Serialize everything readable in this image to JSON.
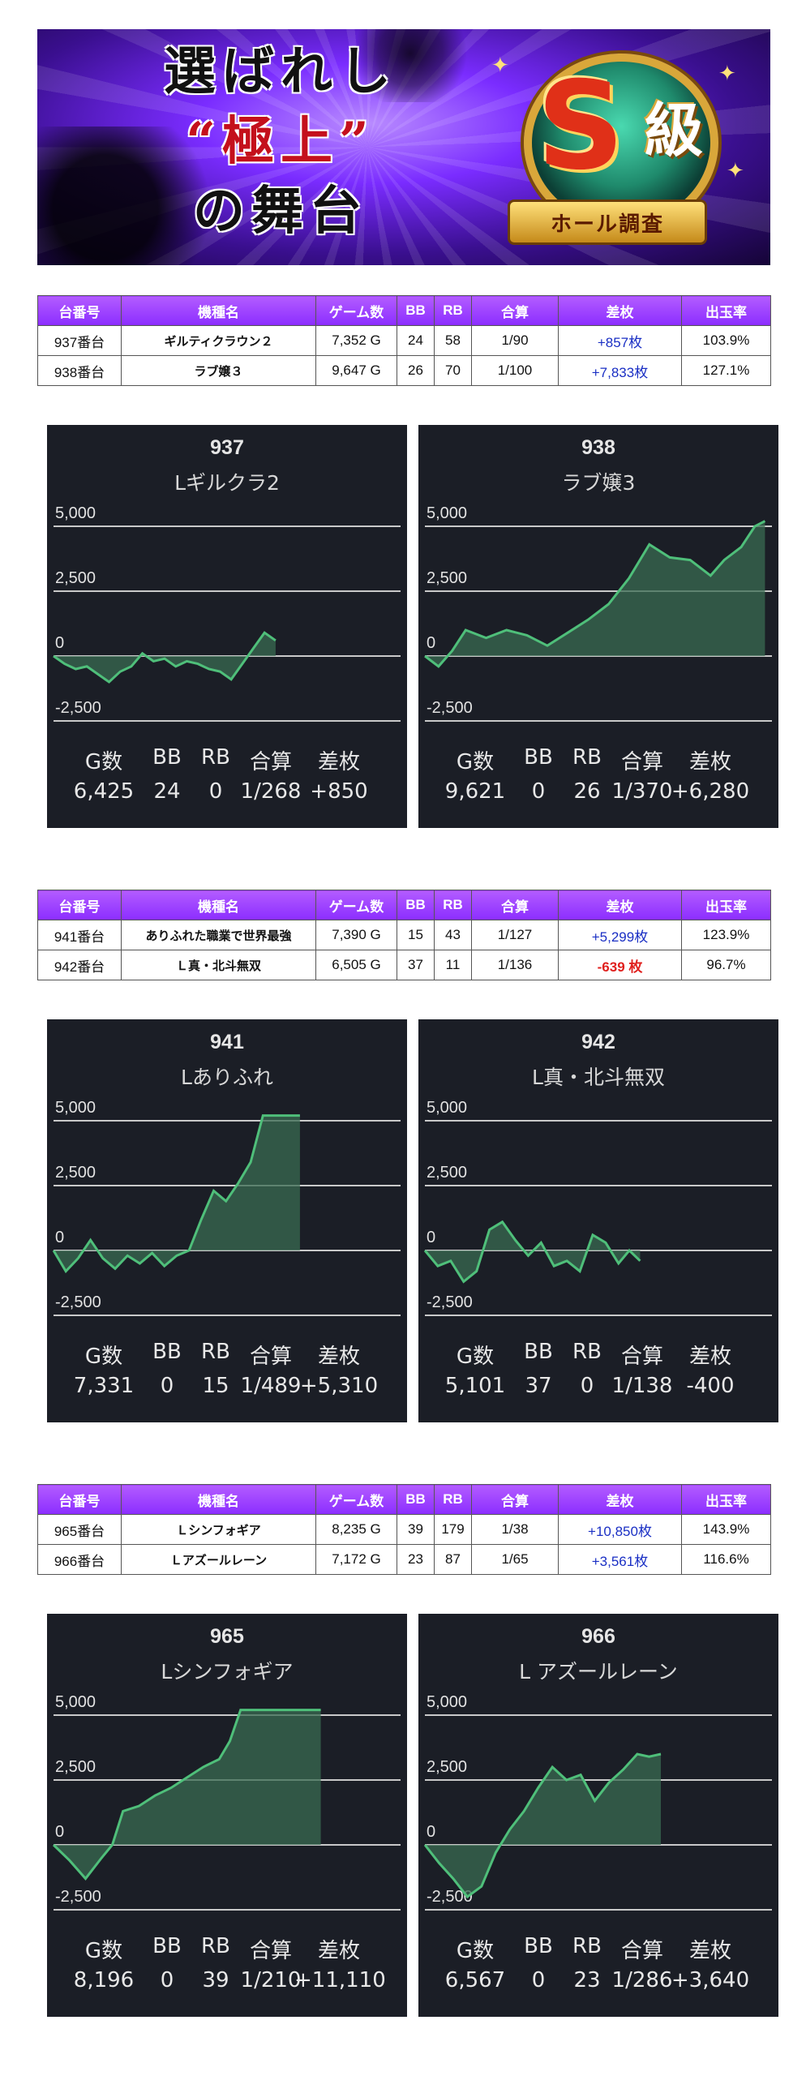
{
  "banner": {
    "line1": "選ばれし",
    "line2": "“極上”",
    "line3": "の舞台",
    "badge_letter": "S",
    "badge_kyu": "級",
    "badge_ribbon": "ホール調査"
  },
  "table_headers": [
    "台番号",
    "機種名",
    "ゲーム数",
    "BB",
    "RB",
    "合算",
    "差枚",
    "出玉率"
  ],
  "sections": [
    {
      "rows": [
        {
          "dai": "937番台",
          "name": "ギルティクラウン２",
          "games": "7,352 G",
          "bb": "24",
          "rb": "58",
          "gousan": "1/90",
          "samai": "+857枚",
          "rate": "103.9%",
          "sign": "plus"
        },
        {
          "dai": "938番台",
          "name": "ラブ嬢３",
          "games": "9,647 G",
          "bb": "26",
          "rb": "70",
          "gousan": "1/100",
          "samai": "+7,833枚",
          "rate": "127.1%",
          "sign": "plus"
        }
      ],
      "graphs": [
        {
          "num": "937",
          "model": "Lギルクラ2",
          "stat_headers": [
            "G数",
            "BB",
            "RB",
            "合算",
            "差枚"
          ],
          "stat_values": [
            "6,425",
            "24",
            "0",
            "1/268",
            "+850"
          ],
          "series": [
            [
              0,
              0
            ],
            [
              0.05,
              -300
            ],
            [
              0.1,
              -500
            ],
            [
              0.15,
              -400
            ],
            [
              0.2,
              -700
            ],
            [
              0.25,
              -1000
            ],
            [
              0.3,
              -600
            ],
            [
              0.35,
              -400
            ],
            [
              0.4,
              100
            ],
            [
              0.45,
              -200
            ],
            [
              0.5,
              -100
            ],
            [
              0.55,
              -400
            ],
            [
              0.6,
              -200
            ],
            [
              0.65,
              -300
            ],
            [
              0.7,
              -500
            ],
            [
              0.75,
              -600
            ],
            [
              0.8,
              -900
            ],
            [
              0.85,
              -300
            ],
            [
              0.9,
              300
            ],
            [
              0.95,
              900
            ],
            [
              1.0,
              600
            ]
          ],
          "xmax_frac": 0.64
        },
        {
          "num": "938",
          "model": "ラブ嬢3",
          "stat_headers": [
            "G数",
            "BB",
            "RB",
            "合算",
            "差枚"
          ],
          "stat_values": [
            "9,621",
            "0",
            "26",
            "1/370",
            "+6,280"
          ],
          "series": [
            [
              0,
              0
            ],
            [
              0.04,
              -400
            ],
            [
              0.08,
              200
            ],
            [
              0.12,
              1000
            ],
            [
              0.18,
              700
            ],
            [
              0.24,
              1000
            ],
            [
              0.3,
              800
            ],
            [
              0.36,
              400
            ],
            [
              0.42,
              900
            ],
            [
              0.48,
              1400
            ],
            [
              0.54,
              2000
            ],
            [
              0.6,
              3000
            ],
            [
              0.66,
              4300
            ],
            [
              0.72,
              3800
            ],
            [
              0.78,
              3700
            ],
            [
              0.84,
              3100
            ],
            [
              0.88,
              3700
            ],
            [
              0.93,
              4200
            ],
            [
              0.97,
              5000
            ],
            [
              1.0,
              5200
            ]
          ],
          "xmax_frac": 0.98
        }
      ]
    },
    {
      "rows": [
        {
          "dai": "941番台",
          "name": "ありふれた職業で世界最強",
          "games": "7,390 G",
          "bb": "15",
          "rb": "43",
          "gousan": "1/127",
          "samai": "+5,299枚",
          "rate": "123.9%",
          "sign": "plus"
        },
        {
          "dai": "942番台",
          "name": "Ｌ真・北斗無双",
          "games": "6,505 G",
          "bb": "37",
          "rb": "11",
          "gousan": "1/136",
          "samai": "-639 枚",
          "rate": "96.7%",
          "sign": "minus"
        }
      ],
      "graphs": [
        {
          "num": "941",
          "model": "Lありふれ",
          "stat_headers": [
            "G数",
            "BB",
            "RB",
            "合算",
            "差枚"
          ],
          "stat_values": [
            "7,331",
            "0",
            "15",
            "1/489",
            "+5,310"
          ],
          "series": [
            [
              0,
              0
            ],
            [
              0.05,
              -800
            ],
            [
              0.1,
              -300
            ],
            [
              0.15,
              400
            ],
            [
              0.2,
              -300
            ],
            [
              0.25,
              -700
            ],
            [
              0.3,
              -200
            ],
            [
              0.35,
              -500
            ],
            [
              0.4,
              -100
            ],
            [
              0.45,
              -600
            ],
            [
              0.5,
              -200
            ],
            [
              0.55,
              0
            ],
            [
              0.6,
              1200
            ],
            [
              0.65,
              2300
            ],
            [
              0.7,
              1900
            ],
            [
              0.75,
              2600
            ],
            [
              0.8,
              3400
            ],
            [
              0.85,
              5200
            ],
            [
              0.92,
              5200
            ],
            [
              1.0,
              5200
            ]
          ],
          "xmax_frac": 0.71
        },
        {
          "num": "942",
          "model": "L真・北斗無双",
          "stat_headers": [
            "G数",
            "BB",
            "RB",
            "合算",
            "差枚"
          ],
          "stat_values": [
            "5,101",
            "37",
            "0",
            "1/138",
            "-400"
          ],
          "series": [
            [
              0,
              0
            ],
            [
              0.06,
              -600
            ],
            [
              0.12,
              -400
            ],
            [
              0.18,
              -1200
            ],
            [
              0.24,
              -800
            ],
            [
              0.3,
              800
            ],
            [
              0.36,
              1100
            ],
            [
              0.42,
              400
            ],
            [
              0.48,
              -200
            ],
            [
              0.54,
              300
            ],
            [
              0.6,
              -600
            ],
            [
              0.66,
              -400
            ],
            [
              0.72,
              -800
            ],
            [
              0.78,
              600
            ],
            [
              0.84,
              300
            ],
            [
              0.9,
              -500
            ],
            [
              0.95,
              0
            ],
            [
              1.0,
              -400
            ]
          ],
          "xmax_frac": 0.62
        }
      ]
    },
    {
      "rows": [
        {
          "dai": "965番台",
          "name": "Ｌシンフォギア",
          "games": "8,235 G",
          "bb": "39",
          "rb": "179",
          "gousan": "1/38",
          "samai": "+10,850枚",
          "rate": "143.9%",
          "sign": "plus"
        },
        {
          "dai": "966番台",
          "name": "Ｌアズールレーン",
          "games": "7,172 G",
          "bb": "23",
          "rb": "87",
          "gousan": "1/65",
          "samai": "+3,561枚",
          "rate": "116.6%",
          "sign": "plus"
        }
      ],
      "graphs": [
        {
          "num": "965",
          "model": "Lシンフォギア",
          "stat_headers": [
            "G数",
            "BB",
            "RB",
            "合算",
            "差枚"
          ],
          "stat_values": [
            "8,196",
            "0",
            "39",
            "1/210",
            "+11,110"
          ],
          "series": [
            [
              0,
              0
            ],
            [
              0.06,
              -600
            ],
            [
              0.12,
              -1300
            ],
            [
              0.18,
              -500
            ],
            [
              0.22,
              0
            ],
            [
              0.26,
              1300
            ],
            [
              0.32,
              1500
            ],
            [
              0.38,
              1900
            ],
            [
              0.44,
              2200
            ],
            [
              0.5,
              2600
            ],
            [
              0.56,
              3000
            ],
            [
              0.62,
              3300
            ],
            [
              0.66,
              4000
            ],
            [
              0.7,
              5200
            ],
            [
              0.85,
              5200
            ],
            [
              1.0,
              5200
            ]
          ],
          "xmax_frac": 0.77
        },
        {
          "num": "966",
          "model": "L アズールレーン",
          "stat_headers": [
            "G数",
            "BB",
            "RB",
            "合算",
            "差枚"
          ],
          "stat_values": [
            "6,567",
            "0",
            "23",
            "1/286",
            "+3,640"
          ],
          "series": [
            [
              0,
              0
            ],
            [
              0.06,
              -700
            ],
            [
              0.12,
              -1300
            ],
            [
              0.18,
              -2000
            ],
            [
              0.24,
              -1600
            ],
            [
              0.3,
              -300
            ],
            [
              0.36,
              600
            ],
            [
              0.42,
              1300
            ],
            [
              0.48,
              2200
            ],
            [
              0.54,
              3000
            ],
            [
              0.6,
              2500
            ],
            [
              0.66,
              2700
            ],
            [
              0.72,
              1700
            ],
            [
              0.78,
              2400
            ],
            [
              0.84,
              2900
            ],
            [
              0.9,
              3500
            ],
            [
              0.95,
              3400
            ],
            [
              1.0,
              3500
            ]
          ],
          "xmax_frac": 0.68
        }
      ]
    }
  ],
  "y_ticks": [
    "5,000",
    "2,500",
    "0",
    "-2,500"
  ],
  "colors": {
    "header_purple": "#9b3dff",
    "plus_blue": "#1a2fc4",
    "minus_red": "#e0201e",
    "graph_bg": "#1b1e26",
    "graph_line": "#4fbf7a",
    "graph_fill": "#3a6b52"
  }
}
